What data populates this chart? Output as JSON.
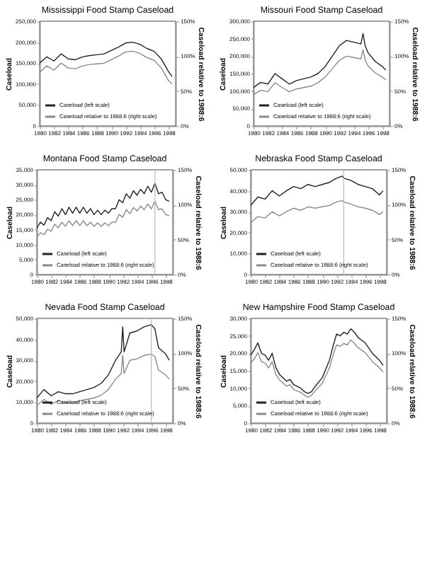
{
  "chart_data": [
    {
      "type": "line",
      "title": "Mississippi Food Stamp Caseload",
      "ylabel": "Caseload",
      "y2label": "Caseload relative to 1988:6",
      "legend": "bottom left",
      "grid": false,
      "x": [
        1980,
        1981,
        1982,
        1983,
        1984,
        1985,
        1986,
        1987,
        1988,
        1989,
        1990,
        1991,
        1992,
        1993,
        1994,
        1995,
        1996,
        1997,
        1998,
        1998.5
      ],
      "xlim": [
        1980,
        1999
      ],
      "xticks": [
        1980,
        1982,
        1984,
        1986,
        1988,
        1990,
        1992,
        1994,
        1996,
        1998
      ],
      "ylim": [
        0,
        250000
      ],
      "yticks": [
        {
          "value": 0,
          "label": "0"
        },
        {
          "value": 50000,
          "label": "50,000"
        },
        {
          "value": 100000,
          "label": "100,000"
        },
        {
          "value": 150000,
          "label": "150,000"
        },
        {
          "value": 200000,
          "label": "200,000"
        },
        {
          "value": 250000,
          "label": "250,000"
        }
      ],
      "y2lim": [
        0,
        150
      ],
      "y2ticks": [
        {
          "value": 0,
          "label": "0%"
        },
        {
          "value": 50,
          "label": "50%"
        },
        {
          "value": 100,
          "label": "100%"
        },
        {
          "value": 150,
          "label": "150%"
        }
      ],
      "series": [
        {
          "name": "Caseload (left scale)",
          "color": "#222222",
          "values": [
            150000,
            165000,
            155000,
            172000,
            160000,
            158000,
            165000,
            168000,
            170000,
            172000,
            180000,
            188000,
            198000,
            200000,
            195000,
            185000,
            178000,
            160000,
            130000,
            118000
          ]
        },
        {
          "name": "Caseload relative to 1988:6 (right scale)",
          "color": "#8a8a8a",
          "axis": "y2",
          "values": [
            77,
            86,
            80,
            90,
            83,
            82,
            86,
            88,
            89,
            90,
            95,
            100,
            106,
            107,
            104,
            98,
            94,
            83,
            65,
            60
          ]
        }
      ]
    },
    {
      "type": "line",
      "title": "Missouri Food Stamp Caseload",
      "ylabel": "Caseload",
      "y2label": "Caseload relative to 1988:6",
      "legend": "bottom left",
      "grid": false,
      "x": [
        1980,
        1981,
        1982,
        1983,
        1984,
        1985,
        1986,
        1987,
        1988,
        1989,
        1990,
        1991,
        1992,
        1993,
        1994,
        1995,
        1995.3,
        1995.6,
        1996,
        1997,
        1998,
        1998.5
      ],
      "xlim": [
        1980,
        1999
      ],
      "xticks": [
        1980,
        1982,
        1984,
        1986,
        1988,
        1990,
        1992,
        1994,
        1996,
        1998
      ],
      "ylim": [
        0,
        300000
      ],
      "yticks": [
        {
          "value": 0,
          "label": "0"
        },
        {
          "value": 50000,
          "label": "50,000"
        },
        {
          "value": 100000,
          "label": "100,000"
        },
        {
          "value": 150000,
          "label": "150,000"
        },
        {
          "value": 200000,
          "label": "200,000"
        },
        {
          "value": 250000,
          "label": "250,000"
        },
        {
          "value": 300000,
          "label": "300,000"
        }
      ],
      "y2lim": [
        0,
        150
      ],
      "y2ticks": [
        {
          "value": 0,
          "label": "0%"
        },
        {
          "value": 50,
          "label": "50%"
        },
        {
          "value": 100,
          "label": "100%"
        },
        {
          "value": 150,
          "label": "150%"
        }
      ],
      "series": [
        {
          "name": "Caseload (left scale)",
          "color": "#222222",
          "values": [
            110000,
            125000,
            120000,
            150000,
            135000,
            120000,
            130000,
            135000,
            140000,
            150000,
            170000,
            200000,
            230000,
            245000,
            240000,
            235000,
            265000,
            230000,
            210000,
            185000,
            170000,
            160000
          ]
        },
        {
          "name": "Caseload relative to 1988:6 (right scale)",
          "color": "#8a8a8a",
          "axis": "y2",
          "values": [
            45,
            51,
            49,
            62,
            55,
            49,
            53,
            55,
            57,
            62,
            70,
            82,
            94,
            100,
            98,
            96,
            109,
            94,
            86,
            76,
            70,
            66
          ]
        }
      ]
    },
    {
      "type": "line",
      "title": "Montana Food Stamp Caseload",
      "ylabel": "Caseload",
      "y2label": "Caseload relative to 1988:6",
      "legend": "bottom left",
      "grid": false,
      "x": [
        1980,
        1980.5,
        1981,
        1981.5,
        1982,
        1982.5,
        1983,
        1983.5,
        1984,
        1984.5,
        1985,
        1985.5,
        1986,
        1986.5,
        1987,
        1987.5,
        1988,
        1988.5,
        1989,
        1989.5,
        1990,
        1990.5,
        1991,
        1991.5,
        1992,
        1992.5,
        1993,
        1993.5,
        1994,
        1994.5,
        1995,
        1995.5,
        1996,
        1996.5,
        1997,
        1997.5,
        1998,
        1998.5
      ],
      "xlim": [
        1980,
        1999
      ],
      "xticks": [
        1980,
        1982,
        1984,
        1986,
        1988,
        1990,
        1992,
        1994,
        1996,
        1998
      ],
      "ylim": [
        0,
        35000
      ],
      "yticks": [
        {
          "value": 0,
          "label": "0"
        },
        {
          "value": 5000,
          "label": "5,000"
        },
        {
          "value": 10000,
          "label": "10,000"
        },
        {
          "value": 15000,
          "label": "15,000"
        },
        {
          "value": 20000,
          "label": "20,000"
        },
        {
          "value": 25000,
          "label": "25,000"
        },
        {
          "value": 30000,
          "label": "30,000"
        },
        {
          "value": 35000,
          "label": "35,000"
        }
      ],
      "y2lim": [
        0,
        150
      ],
      "y2ticks": [
        {
          "value": 0,
          "label": "0%"
        },
        {
          "value": 50,
          "label": "50%"
        },
        {
          "value": 100,
          "label": "100%"
        },
        {
          "value": 150,
          "label": "150%"
        }
      ],
      "ref_lines": [
        {
          "axis": "x",
          "value": 1996.5,
          "color": "#bbbbbb"
        }
      ],
      "series": [
        {
          "name": "Caseload (left scale)",
          "color": "#222222",
          "values": [
            15500,
            17500,
            16500,
            19000,
            18000,
            21000,
            19500,
            22000,
            20000,
            22500,
            20500,
            22500,
            20500,
            22500,
            20500,
            22000,
            20000,
            21500,
            20000,
            21500,
            20500,
            22000,
            22000,
            25000,
            24000,
            27000,
            25500,
            28000,
            26500,
            28500,
            27000,
            29500,
            27500,
            30500,
            27000,
            27500,
            25000,
            24500
          ]
        },
        {
          "name": "Caseload relative to 1988:6 (right scale)",
          "color": "#8a8a8a",
          "axis": "y2",
          "values": [
            53,
            60,
            57,
            65,
            62,
            72,
            67,
            75,
            69,
            77,
            70,
            77,
            70,
            77,
            70,
            75,
            69,
            74,
            69,
            74,
            70,
            75,
            75,
            86,
            82,
            93,
            87,
            96,
            91,
            98,
            93,
            101,
            94,
            105,
            93,
            94,
            86,
            84
          ]
        }
      ]
    },
    {
      "type": "line",
      "title": "Nebraska Food Stamp Caseload",
      "ylabel": "Caseload",
      "y2label": "Caseload relative to 1988:6",
      "legend": "bottom left",
      "grid": false,
      "x": [
        1980,
        1981,
        1982,
        1983,
        1984,
        1985,
        1986,
        1987,
        1988,
        1989,
        1990,
        1991,
        1992,
        1992.8,
        1993,
        1994,
        1995,
        1996,
        1997,
        1998,
        1998.5
      ],
      "xlim": [
        1980,
        1999
      ],
      "xticks": [
        1980,
        1982,
        1984,
        1986,
        1988,
        1990,
        1992,
        1994,
        1996,
        1998
      ],
      "ylim": [
        0,
        50000
      ],
      "yticks": [
        {
          "value": 0,
          "label": "0"
        },
        {
          "value": 10000,
          "label": "10,000"
        },
        {
          "value": 20000,
          "label": "20,000"
        },
        {
          "value": 30000,
          "label": "30,000"
        },
        {
          "value": 40000,
          "label": "40,000"
        },
        {
          "value": 50000,
          "label": "50,000"
        }
      ],
      "y2lim": [
        0,
        150
      ],
      "y2ticks": [
        {
          "value": 0,
          "label": "0%"
        },
        {
          "value": 50,
          "label": "50%"
        },
        {
          "value": 100,
          "label": "100%"
        },
        {
          "value": 150,
          "label": "150%"
        }
      ],
      "ref_lines": [
        {
          "axis": "x",
          "value": 1993,
          "color": "#bbbbbb"
        }
      ],
      "series": [
        {
          "name": "Caseload (left scale)",
          "color": "#222222",
          "values": [
            33000,
            37000,
            36000,
            40000,
            37500,
            40000,
            42000,
            41000,
            43000,
            42000,
            43000,
            44000,
            46000,
            47000,
            46000,
            45000,
            43000,
            42000,
            41000,
            38000,
            40000
          ]
        },
        {
          "name": "Caseload relative to 1988:6 (right scale)",
          "color": "#8a8a8a",
          "axis": "y2",
          "values": [
            74,
            83,
            81,
            90,
            84,
            90,
            95,
            92,
            97,
            95,
            97,
            99,
            104,
            106,
            104,
            101,
            97,
            95,
            92,
            86,
            90
          ]
        }
      ]
    },
    {
      "type": "line",
      "title": "Nevada Food Stamp Caseload",
      "ylabel": "Caseload",
      "y2label": "Caseload relative to 1988:6",
      "legend": "bottom left",
      "grid": false,
      "x": [
        1980,
        1981,
        1982,
        1983,
        1984,
        1985,
        1986,
        1987,
        1988,
        1989,
        1990,
        1991,
        1991.8,
        1992,
        1992.2,
        1993,
        1994,
        1995,
        1996,
        1996.5,
        1997,
        1998,
        1998.5
      ],
      "xlim": [
        1980,
        1999
      ],
      "xticks": [
        1980,
        1982,
        1984,
        1986,
        1988,
        1990,
        1992,
        1994,
        1996,
        1998
      ],
      "ylim": [
        0,
        50000
      ],
      "yticks": [
        {
          "value": 0,
          "label": "0"
        },
        {
          "value": 10000,
          "label": "10,000"
        },
        {
          "value": 20000,
          "label": "20,000"
        },
        {
          "value": 30000,
          "label": "30,000"
        },
        {
          "value": 40000,
          "label": "40,000"
        },
        {
          "value": 50000,
          "label": "50,000"
        }
      ],
      "y2lim": [
        0,
        150
      ],
      "y2ticks": [
        {
          "value": 0,
          "label": "0%"
        },
        {
          "value": 50,
          "label": "50%"
        },
        {
          "value": 100,
          "label": "100%"
        },
        {
          "value": 150,
          "label": "150%"
        }
      ],
      "ref_lines": [
        {
          "axis": "x",
          "value": 1996,
          "color": "#bbbbbb"
        }
      ],
      "series": [
        {
          "name": "Caseload (left scale)",
          "color": "#222222",
          "values": [
            12000,
            16000,
            13000,
            15000,
            14000,
            14000,
            15000,
            16000,
            17000,
            19000,
            23000,
            30000,
            34000,
            46000,
            34000,
            43000,
            44000,
            46000,
            47000,
            45000,
            36000,
            33000,
            30000
          ]
        },
        {
          "name": "Caseload relative to 1988:6 (right scale)",
          "color": "#8a8a8a",
          "axis": "y2",
          "values": [
            25,
            34,
            27,
            32,
            29,
            29,
            32,
            34,
            36,
            40,
            48,
            63,
            71,
            97,
            71,
            90,
            92,
            97,
            99,
            95,
            76,
            69,
            63
          ]
        }
      ]
    },
    {
      "type": "line",
      "title": "New Hampshire Food Stamp Caseload",
      "ylabel": "Caseload",
      "y2label": "Caseload relative to 1988:6",
      "legend": "bottom left",
      "grid": false,
      "x": [
        1980,
        1980.5,
        1981,
        1981.5,
        1982,
        1982.5,
        1983,
        1983.5,
        1984,
        1985,
        1985.5,
        1986,
        1987,
        1987.5,
        1988,
        1988.5,
        1989,
        1990,
        1991,
        1991.5,
        1992,
        1992.5,
        1993,
        1993.5,
        1994,
        1994.5,
        1995,
        1996,
        1997,
        1998,
        1998.5
      ],
      "xlim": [
        1980,
        1999
      ],
      "xticks": [
        1980,
        1982,
        1984,
        1986,
        1988,
        1990,
        1992,
        1994,
        1996,
        1998
      ],
      "ylim": [
        0,
        30000
      ],
      "yticks": [
        {
          "value": 0,
          "label": "0"
        },
        {
          "value": 5000,
          "label": "5,000"
        },
        {
          "value": 10000,
          "label": "10,000"
        },
        {
          "value": 15000,
          "label": "15,000"
        },
        {
          "value": 20000,
          "label": "20,000"
        },
        {
          "value": 25000,
          "label": "25,000"
        },
        {
          "value": 30000,
          "label": "30,000"
        }
      ],
      "y2lim": [
        0,
        150
      ],
      "y2ticks": [
        {
          "value": 0,
          "label": "0%"
        },
        {
          "value": 50,
          "label": "50%"
        },
        {
          "value": 100,
          "label": "100%"
        },
        {
          "value": 150,
          "label": "150%"
        }
      ],
      "series": [
        {
          "name": "Caseload (left scale)",
          "color": "#222222",
          "values": [
            19500,
            21000,
            23000,
            20000,
            19500,
            18000,
            20000,
            16000,
            14000,
            12000,
            12500,
            11000,
            10000,
            9000,
            8500,
            9000,
            10500,
            13000,
            18000,
            22000,
            25500,
            25000,
            26000,
            25500,
            27000,
            26000,
            24500,
            23000,
            20000,
            18000,
            16500
          ]
        },
        {
          "name": "Caseload relative to 1988:6 (right scale)",
          "color": "#8a8a8a",
          "axis": "y2",
          "values": [
            86,
            92,
            101,
            88,
            86,
            79,
            88,
            70,
            62,
            53,
            55,
            48,
            44,
            40,
            37,
            40,
            46,
            57,
            79,
            97,
            112,
            110,
            114,
            112,
            119,
            114,
            108,
            101,
            88,
            79,
            73
          ]
        }
      ]
    }
  ]
}
